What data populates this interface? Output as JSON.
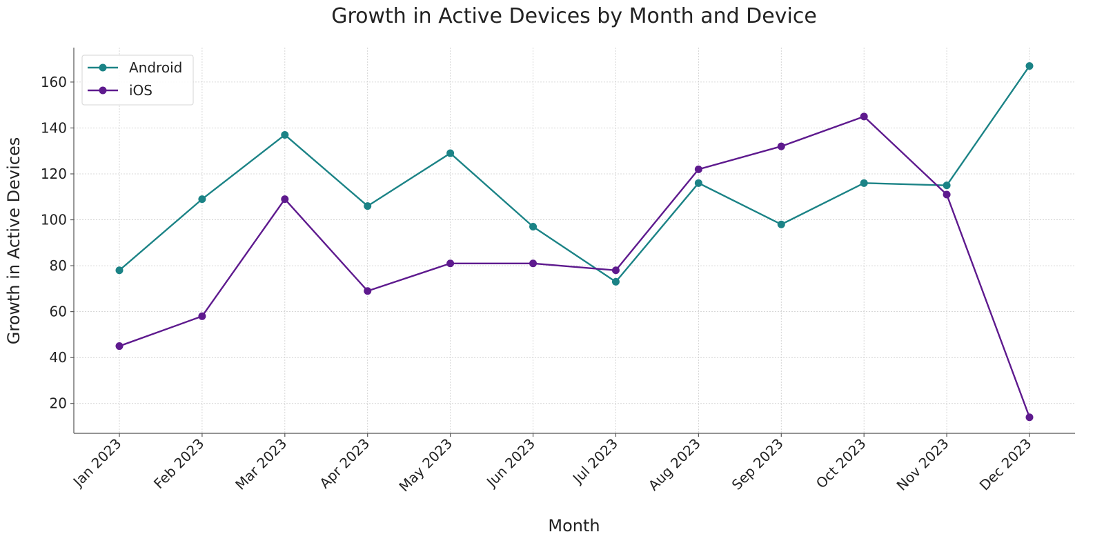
{
  "chart_data": {
    "type": "line",
    "title": "Growth in Active Devices by Month and Device",
    "xlabel": "Month",
    "ylabel": "Growth in Active Devices",
    "categories": [
      "Jan 2023",
      "Feb 2023",
      "Mar 2023",
      "Apr 2023",
      "May 2023",
      "Jun 2023",
      "Jul 2023",
      "Aug 2023",
      "Sep 2023",
      "Oct 2023",
      "Nov 2023",
      "Dec 2023"
    ],
    "series": [
      {
        "name": "Android",
        "color": "#1b8386",
        "values": [
          78,
          109,
          137,
          106,
          129,
          97,
          73,
          116,
          98,
          116,
          115,
          167
        ]
      },
      {
        "name": "iOS",
        "color": "#5e1a8e",
        "values": [
          45,
          58,
          109,
          69,
          81,
          81,
          78,
          122,
          132,
          145,
          111,
          14
        ]
      }
    ],
    "ylim": [
      7,
      175
    ],
    "yticks": [
      20,
      40,
      60,
      80,
      100,
      120,
      140,
      160
    ],
    "grid": true,
    "legend_position": "top-left",
    "marker": "circle"
  }
}
